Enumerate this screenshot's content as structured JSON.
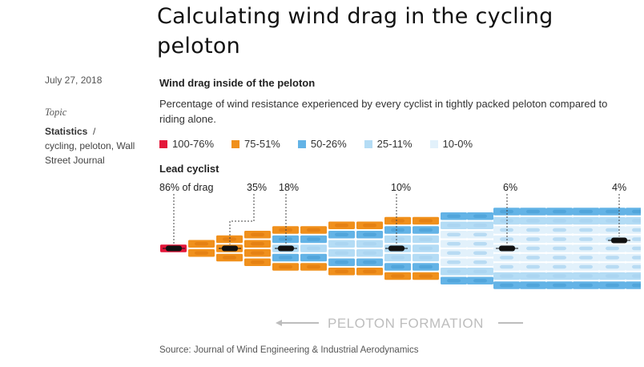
{
  "article": {
    "title": "Calculating wind drag in the cycling peloton",
    "date": "July 27, 2018",
    "topic_label": "Topic",
    "topic_primary": "Statistics",
    "topic_rest": "cycling, peloton, Wall Street Journal"
  },
  "graphic": {
    "title": "Wind drag inside of the peloton",
    "subtitle": "Percentage of wind resistance experienced by every cyclist in tightly packed peloton compared to riding alone.",
    "legend": [
      {
        "label": "100-76%",
        "color": "#e4173a"
      },
      {
        "label": "75-51%",
        "color": "#f0901c"
      },
      {
        "label": "50-26%",
        "color": "#63b3e6"
      },
      {
        "label": "25-11%",
        "color": "#b4dcf5"
      },
      {
        "label": "10-0%",
        "color": "#e2f1fb"
      }
    ],
    "lead_label": "Lead cyclist",
    "callouts": [
      "86% of drag",
      "35%",
      "18%",
      "10%",
      "6%",
      "4%"
    ],
    "formation_label": "PELOTON FORMATION",
    "source": "Source: Journal of Wind Engineering & Industrial Aerodynamics"
  }
}
